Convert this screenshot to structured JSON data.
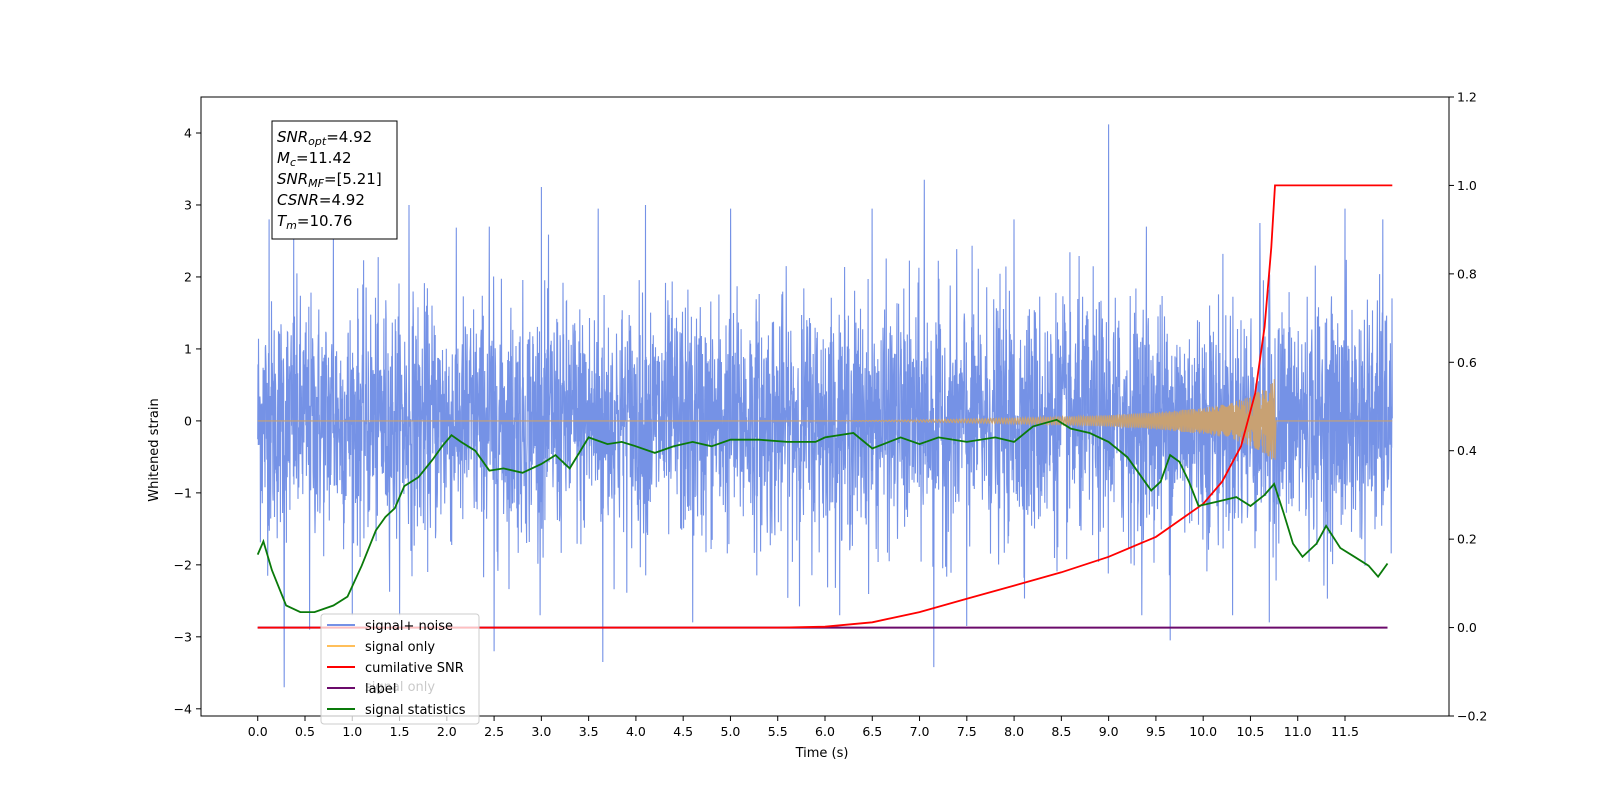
{
  "chart_data": {
    "type": "line",
    "xlabel": "Time (s)",
    "ylabel": "Whitened strain",
    "xlim": [
      -0.6,
      12.6
    ],
    "ylim": [
      -4.1,
      4.5
    ],
    "y2lim": [
      -0.2,
      1.2
    ],
    "x_ticks": [
      0.0,
      0.5,
      1.0,
      1.5,
      2.0,
      2.5,
      3.0,
      3.5,
      4.0,
      4.5,
      5.0,
      5.5,
      6.0,
      6.5,
      7.0,
      7.5,
      8.0,
      8.5,
      9.0,
      9.5,
      10.0,
      10.5,
      11.0,
      11.5
    ],
    "x_tick_labels": [
      "0.0",
      "0.5",
      "1.0",
      "1.5",
      "2.0",
      "2.5",
      "3.0",
      "3.5",
      "4.0",
      "4.5",
      "5.0",
      "5.5",
      "6.0",
      "6.5",
      "7.0",
      "7.5",
      "8.0",
      "8.5",
      "9.0",
      "9.5",
      "10.0",
      "10.5",
      "11.0",
      "11.5"
    ],
    "y_ticks": [
      -4,
      -3,
      -2,
      -1,
      0,
      1,
      2,
      3,
      4
    ],
    "y_tick_labels": [
      "−4",
      "−3",
      "−2",
      "−1",
      "0",
      "1",
      "2",
      "3",
      "4"
    ],
    "y2_ticks": [
      -0.2,
      0.0,
      0.2,
      0.4,
      0.6,
      0.8,
      1.0,
      1.2
    ],
    "y2_tick_labels": [
      "−0.2",
      "0.0",
      "0.2",
      "0.4",
      "0.6",
      "0.8",
      "1.0",
      "1.2"
    ],
    "grid": false,
    "legend_position": "lower-left",
    "legend": [
      "signal+ noise",
      "signal only",
      "cumilative SNR",
      "label",
      "signal statistics"
    ],
    "occluded_legend_text": "signal only",
    "annotation": {
      "lines": [
        {
          "sym": "SNR",
          "sub": "opt",
          "val": "=4.92"
        },
        {
          "sym": "M",
          "sub": "c",
          "val": "=11.42"
        },
        {
          "sym": "SNR",
          "sub": "MF",
          "val": "=[5.21]"
        },
        {
          "sym": "CSNR",
          "sub": "",
          "val": "=4.92"
        },
        {
          "sym": "T",
          "sub": "m",
          "val": "=10.76"
        }
      ]
    },
    "colors": {
      "signal_noise": "#7592e6",
      "signal_only": "#c8a173",
      "signal_only_legend": "#ffbf5a",
      "cumulative_snr": "#ff0000",
      "label": "#6b0a6b",
      "statistics": "#0a7a0a"
    },
    "series": [
      {
        "name": "signal+ noise",
        "axis": "left",
        "t_start": 0.0,
        "t_end": 12.0,
        "upper_envelope_typical": 1.5,
        "lower_envelope_typical": -1.5,
        "peaks": [
          {
            "x": 0.12,
            "y": 2.8
          },
          {
            "x": 0.38,
            "y": 2.55
          },
          {
            "x": 0.8,
            "y": 2.6
          },
          {
            "x": 1.6,
            "y": 3.0
          },
          {
            "x": 2.45,
            "y": 2.7
          },
          {
            "x": 3.0,
            "y": 3.25
          },
          {
            "x": 3.6,
            "y": 2.95
          },
          {
            "x": 4.1,
            "y": 3.0
          },
          {
            "x": 5.0,
            "y": 2.95
          },
          {
            "x": 6.5,
            "y": 2.95
          },
          {
            "x": 7.05,
            "y": 3.35
          },
          {
            "x": 8.0,
            "y": 2.8
          },
          {
            "x": 9.0,
            "y": 4.12
          },
          {
            "x": 9.4,
            "y": 2.7
          },
          {
            "x": 10.6,
            "y": 2.75
          },
          {
            "x": 11.5,
            "y": 2.95
          },
          {
            "x": 11.9,
            "y": 2.8
          }
        ],
        "troughs": [
          {
            "x": 0.28,
            "y": -3.7
          },
          {
            "x": 0.55,
            "y": -2.9
          },
          {
            "x": 2.5,
            "y": -3.2
          },
          {
            "x": 3.65,
            "y": -3.35
          },
          {
            "x": 4.6,
            "y": -2.8
          },
          {
            "x": 7.15,
            "y": -3.42
          },
          {
            "x": 7.5,
            "y": -2.85
          },
          {
            "x": 9.65,
            "y": -3.05
          },
          {
            "x": 10.7,
            "y": -2.8
          }
        ]
      },
      {
        "name": "signal only",
        "axis": "left",
        "chirp_start": 6.0,
        "merger_time": 10.76,
        "peak_amplitude": 0.6,
        "amplitude_at": [
          {
            "x": 6.0,
            "y": 0.0
          },
          {
            "x": 7.0,
            "y": 0.015
          },
          {
            "x": 8.0,
            "y": 0.04
          },
          {
            "x": 9.0,
            "y": 0.08
          },
          {
            "x": 9.5,
            "y": 0.12
          },
          {
            "x": 10.0,
            "y": 0.18
          },
          {
            "x": 10.3,
            "y": 0.25
          },
          {
            "x": 10.55,
            "y": 0.38
          },
          {
            "x": 10.7,
            "y": 0.5
          },
          {
            "x": 10.76,
            "y": 0.6
          }
        ]
      },
      {
        "name": "cumilative SNR",
        "axis": "right",
        "points": [
          {
            "x": 0.0,
            "y": 0.0
          },
          {
            "x": 5.5,
            "y": 0.0
          },
          {
            "x": 6.0,
            "y": 0.002
          },
          {
            "x": 6.5,
            "y": 0.012
          },
          {
            "x": 7.0,
            "y": 0.035
          },
          {
            "x": 7.5,
            "y": 0.065
          },
          {
            "x": 8.0,
            "y": 0.095
          },
          {
            "x": 8.5,
            "y": 0.125
          },
          {
            "x": 9.0,
            "y": 0.16
          },
          {
            "x": 9.5,
            "y": 0.205
          },
          {
            "x": 10.0,
            "y": 0.28
          },
          {
            "x": 10.2,
            "y": 0.33
          },
          {
            "x": 10.4,
            "y": 0.41
          },
          {
            "x": 10.55,
            "y": 0.53
          },
          {
            "x": 10.65,
            "y": 0.68
          },
          {
            "x": 10.72,
            "y": 0.86
          },
          {
            "x": 10.76,
            "y": 1.0
          },
          {
            "x": 12.0,
            "y": 1.0
          }
        ]
      },
      {
        "name": "label",
        "axis": "right",
        "points": [
          {
            "x": 0.0,
            "y": 0.0
          },
          {
            "x": 11.95,
            "y": 0.0
          }
        ]
      },
      {
        "name": "signal statistics",
        "axis": "right",
        "points": [
          {
            "x": 0.0,
            "y": 0.165
          },
          {
            "x": 0.06,
            "y": 0.195
          },
          {
            "x": 0.15,
            "y": 0.13
          },
          {
            "x": 0.3,
            "y": 0.05
          },
          {
            "x": 0.45,
            "y": 0.035
          },
          {
            "x": 0.6,
            "y": 0.035
          },
          {
            "x": 0.8,
            "y": 0.05
          },
          {
            "x": 0.95,
            "y": 0.07
          },
          {
            "x": 1.1,
            "y": 0.14
          },
          {
            "x": 1.25,
            "y": 0.22
          },
          {
            "x": 1.35,
            "y": 0.25
          },
          {
            "x": 1.45,
            "y": 0.27
          },
          {
            "x": 1.55,
            "y": 0.32
          },
          {
            "x": 1.7,
            "y": 0.34
          },
          {
            "x": 1.85,
            "y": 0.38
          },
          {
            "x": 1.95,
            "y": 0.41
          },
          {
            "x": 2.05,
            "y": 0.435
          },
          {
            "x": 2.15,
            "y": 0.42
          },
          {
            "x": 2.3,
            "y": 0.4
          },
          {
            "x": 2.45,
            "y": 0.355
          },
          {
            "x": 2.6,
            "y": 0.36
          },
          {
            "x": 2.8,
            "y": 0.35
          },
          {
            "x": 3.0,
            "y": 0.37
          },
          {
            "x": 3.15,
            "y": 0.39
          },
          {
            "x": 3.3,
            "y": 0.36
          },
          {
            "x": 3.5,
            "y": 0.43
          },
          {
            "x": 3.7,
            "y": 0.415
          },
          {
            "x": 3.85,
            "y": 0.42
          },
          {
            "x": 4.0,
            "y": 0.41
          },
          {
            "x": 4.2,
            "y": 0.395
          },
          {
            "x": 4.4,
            "y": 0.41
          },
          {
            "x": 4.6,
            "y": 0.42
          },
          {
            "x": 4.8,
            "y": 0.41
          },
          {
            "x": 5.0,
            "y": 0.425
          },
          {
            "x": 5.3,
            "y": 0.425
          },
          {
            "x": 5.6,
            "y": 0.42
          },
          {
            "x": 5.9,
            "y": 0.42
          },
          {
            "x": 6.0,
            "y": 0.43
          },
          {
            "x": 6.3,
            "y": 0.44
          },
          {
            "x": 6.5,
            "y": 0.405
          },
          {
            "x": 6.8,
            "y": 0.43
          },
          {
            "x": 7.0,
            "y": 0.415
          },
          {
            "x": 7.2,
            "y": 0.43
          },
          {
            "x": 7.5,
            "y": 0.42
          },
          {
            "x": 7.8,
            "y": 0.43
          },
          {
            "x": 8.0,
            "y": 0.42
          },
          {
            "x": 8.2,
            "y": 0.455
          },
          {
            "x": 8.45,
            "y": 0.47
          },
          {
            "x": 8.6,
            "y": 0.45
          },
          {
            "x": 8.8,
            "y": 0.44
          },
          {
            "x": 9.0,
            "y": 0.42
          },
          {
            "x": 9.2,
            "y": 0.385
          },
          {
            "x": 9.35,
            "y": 0.34
          },
          {
            "x": 9.45,
            "y": 0.31
          },
          {
            "x": 9.55,
            "y": 0.33
          },
          {
            "x": 9.65,
            "y": 0.39
          },
          {
            "x": 9.75,
            "y": 0.375
          },
          {
            "x": 9.85,
            "y": 0.33
          },
          {
            "x": 9.95,
            "y": 0.275
          },
          {
            "x": 10.15,
            "y": 0.285
          },
          {
            "x": 10.35,
            "y": 0.295
          },
          {
            "x": 10.5,
            "y": 0.275
          },
          {
            "x": 10.65,
            "y": 0.3
          },
          {
            "x": 10.75,
            "y": 0.325
          },
          {
            "x": 10.85,
            "y": 0.26
          },
          {
            "x": 10.95,
            "y": 0.19
          },
          {
            "x": 11.05,
            "y": 0.16
          },
          {
            "x": 11.2,
            "y": 0.19
          },
          {
            "x": 11.3,
            "y": 0.23
          },
          {
            "x": 11.45,
            "y": 0.18
          },
          {
            "x": 11.6,
            "y": 0.16
          },
          {
            "x": 11.75,
            "y": 0.14
          },
          {
            "x": 11.85,
            "y": 0.115
          },
          {
            "x": 11.95,
            "y": 0.145
          }
        ]
      }
    ]
  }
}
